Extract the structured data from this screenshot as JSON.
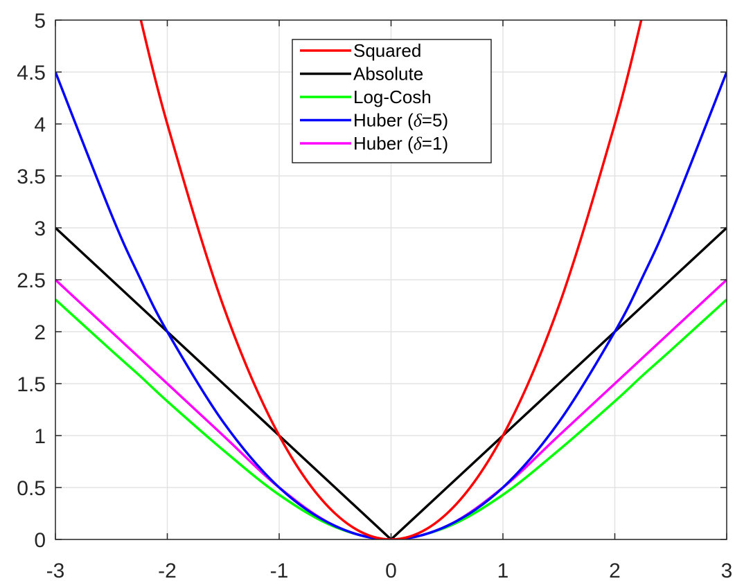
{
  "chart_data": {
    "type": "line",
    "xlim": [
      -3,
      3
    ],
    "ylim": [
      0,
      5
    ],
    "xticks": [
      -3,
      -2,
      -1,
      0,
      1,
      2,
      3
    ],
    "yticks": [
      0,
      0.5,
      1,
      1.5,
      2,
      2.5,
      3,
      3.5,
      4,
      4.5,
      5
    ],
    "xtick_labels": [
      "-3",
      "-2",
      "-1",
      "0",
      "1",
      "2",
      "3"
    ],
    "ytick_labels": [
      "0",
      "0.5",
      "1",
      "1.5",
      "2",
      "2.5",
      "3",
      "3.5",
      "4",
      "4.5",
      "5"
    ],
    "grid": true,
    "legend_position": "top-center",
    "x": [
      -3,
      -2.5,
      -2.25,
      -2,
      -1.5,
      -1,
      -0.5,
      0,
      0.5,
      1,
      1.5,
      2,
      2.25,
      2.5,
      3
    ],
    "series": [
      {
        "name": "Squared",
        "color": "#ff0000",
        "values": [
          null,
          null,
          5.06,
          4,
          2.25,
          1,
          0.25,
          0,
          0.25,
          1,
          2.25,
          4,
          5.06,
          null,
          null
        ]
      },
      {
        "name": "Absolute",
        "color": "#000000",
        "values": [
          3,
          2.5,
          2.25,
          2,
          1.5,
          1,
          0.5,
          0,
          0.5,
          1,
          1.5,
          2,
          2.25,
          2.5,
          3
        ]
      },
      {
        "name": "Log-Cosh",
        "color": "#00ff00",
        "values": [
          2.31,
          1.82,
          1.58,
          1.33,
          0.86,
          0.43,
          0.12,
          0,
          0.12,
          0.43,
          0.86,
          1.33,
          1.58,
          1.82,
          2.31
        ]
      },
      {
        "name": "Huber (δ=5)",
        "color": "#0000ff",
        "values": [
          4.5,
          3.13,
          2.53,
          2,
          1.13,
          0.5,
          0.13,
          0,
          0.13,
          0.5,
          1.13,
          2,
          2.53,
          3.13,
          4.5
        ]
      },
      {
        "name": "Huber (δ=1)",
        "color": "#ff00ff",
        "values": [
          2.5,
          2,
          1.75,
          1.5,
          1,
          0.5,
          0.13,
          0,
          0.13,
          0.5,
          1,
          1.5,
          1.75,
          2,
          2.5
        ]
      }
    ],
    "legend": [
      {
        "prefix": "Squared",
        "symbol": "",
        "suffix": ""
      },
      {
        "prefix": "Absolute",
        "symbol": "",
        "suffix": ""
      },
      {
        "prefix": "Log-Cosh",
        "symbol": "",
        "suffix": ""
      },
      {
        "prefix": "Huber (",
        "symbol": "δ",
        "suffix": "=5)"
      },
      {
        "prefix": "Huber (",
        "symbol": "δ",
        "suffix": "=1)"
      }
    ]
  }
}
